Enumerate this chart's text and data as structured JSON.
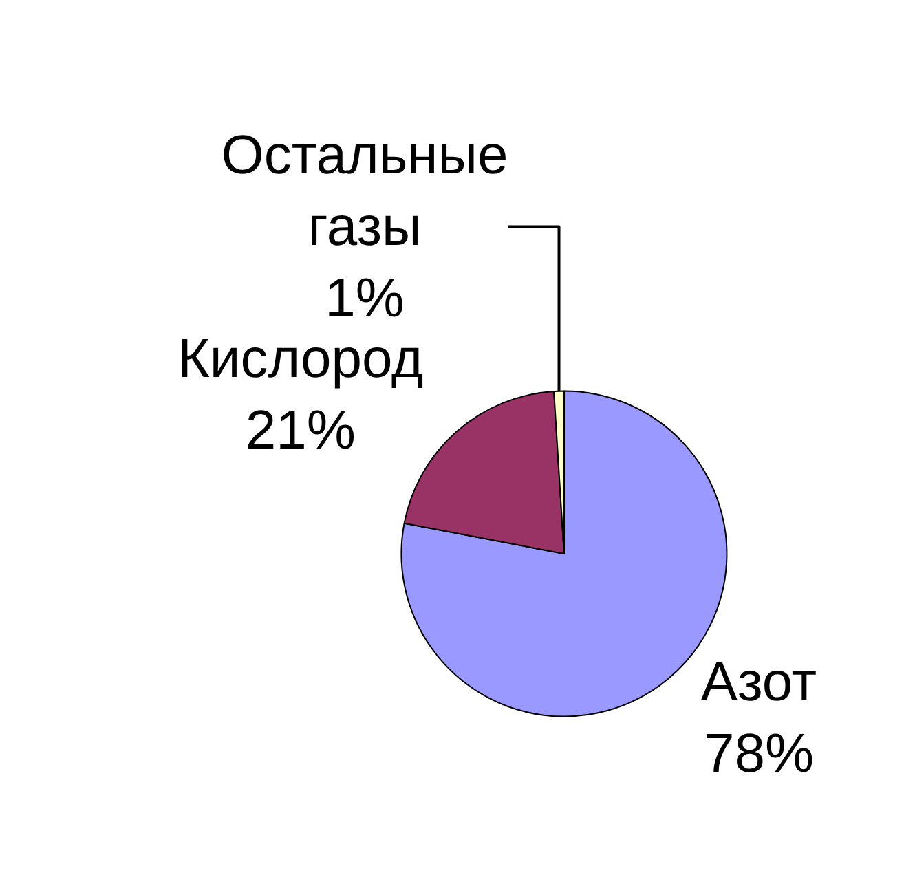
{
  "chart_data": {
    "type": "pie",
    "categories": [
      "Азот",
      "Кислород",
      "Остальные газы"
    ],
    "values": [
      78,
      21,
      1
    ],
    "value_labels": [
      "78%",
      "21%",
      "1%"
    ],
    "colors": [
      "#9999ff",
      "#993366",
      "#ffffcc"
    ]
  }
}
